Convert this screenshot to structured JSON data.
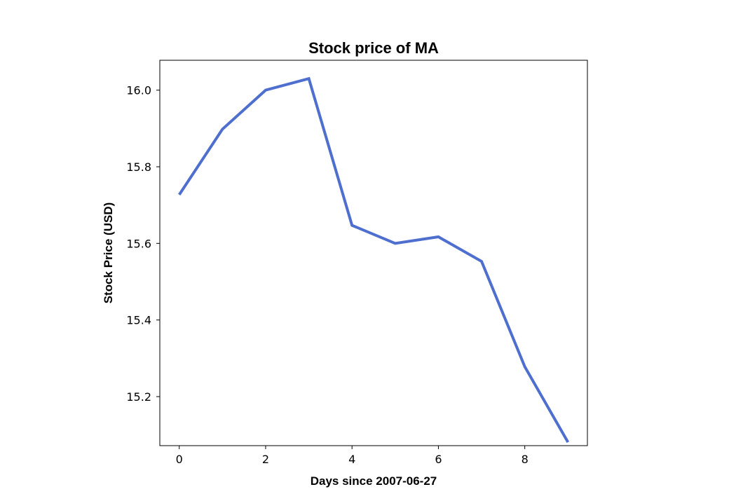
{
  "chart_data": {
    "type": "line",
    "title": "Stock price of MA",
    "xlabel": "Days since 2007-06-27",
    "ylabel": "Stock Price (USD)",
    "xlim": [
      -0.45,
      9.45
    ],
    "ylim": [
      15.072,
      16.078
    ],
    "xticks": [
      0,
      2,
      4,
      6,
      8
    ],
    "yticks": [
      15.2,
      15.4,
      15.6,
      15.8,
      16.0
    ],
    "xtick_labels": [
      "0",
      "2",
      "4",
      "6",
      "8"
    ],
    "ytick_labels": [
      "15.2",
      "15.4",
      "15.6",
      "15.8",
      "16.0"
    ],
    "grid": false,
    "series": [
      {
        "color": "#4f6fcf",
        "x": [
          0,
          1,
          2,
          3,
          4,
          5,
          6,
          7,
          8,
          9
        ],
        "y": [
          15.727,
          15.898,
          16.0,
          16.03,
          15.647,
          15.6,
          15.617,
          15.553,
          15.278,
          15.081
        ]
      }
    ]
  }
}
